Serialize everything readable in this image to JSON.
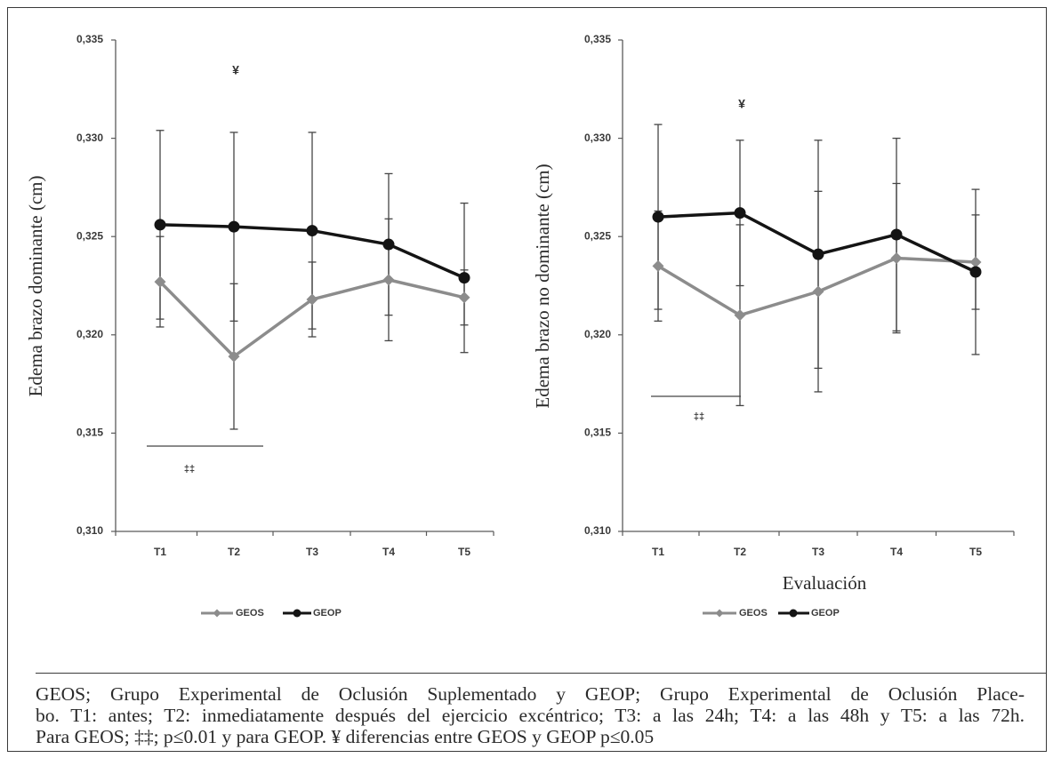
{
  "caption": {
    "lines": [
      "GEOS; Grupo Experimental de Oclusión Suplementado y GEOP; Grupo Experimental de Oclusión Place-",
      "bo. T1: antes; T2: inmediatamente después del ejercicio excéntrico; T3: a las 24h; T4: a las 48h y T5: a las 72h.",
      "Para GEOS; ‡‡; p≤0.01 y para GEOP. ¥ diferencias entre GEOS y GEOP p≤0.05"
    ]
  },
  "colors": {
    "GEOS": "#8c8c8c",
    "GEOP": "#141414",
    "error_bar": "#454545",
    "axis": "#5a5a5a"
  },
  "chart_data": [
    {
      "type": "line",
      "categories": [
        "T1",
        "T2",
        "T3",
        "T4",
        "T5"
      ],
      "series": [
        {
          "name": "GEOS",
          "marker": "diamond",
          "values": [
            0.3227,
            0.3189,
            0.3218,
            0.3228,
            0.3219
          ],
          "error": [
            0.0023,
            0.0037,
            0.0019,
            0.0031,
            0.0014
          ]
        },
        {
          "name": "GEOP",
          "marker": "circle",
          "values": [
            0.3256,
            0.3255,
            0.3253,
            0.3246,
            0.3229
          ],
          "error": [
            0.0048,
            0.0048,
            0.005,
            0.0036,
            0.0038
          ]
        }
      ],
      "ylabel": "Edema brazo dominante (cm)",
      "ylim": [
        0.31,
        0.335
      ],
      "yticks": [
        0.31,
        0.315,
        0.32,
        0.325,
        0.33,
        0.335
      ],
      "ytick_labels": [
        "0,310",
        "0,315",
        "0,320",
        "0,325",
        "0,330",
        "0,335"
      ],
      "grid": false,
      "legend": "bottom",
      "annotations": [
        {
          "text": "¥",
          "category": "T2"
        },
        {
          "text": "‡‡",
          "from": "T1",
          "to": "T2"
        }
      ]
    },
    {
      "type": "line",
      "categories": [
        "T1",
        "T2",
        "T3",
        "T4",
        "T5"
      ],
      "series": [
        {
          "name": "GEOS",
          "marker": "diamond",
          "values": [
            0.3235,
            0.321,
            0.3222,
            0.3239,
            0.3237
          ],
          "error": [
            0.0028,
            0.0046,
            0.0051,
            0.0038,
            0.0024
          ]
        },
        {
          "name": "GEOP",
          "marker": "circle",
          "values": [
            0.326,
            0.3262,
            0.3241,
            0.3251,
            0.3232
          ],
          "error": [
            0.0047,
            0.0037,
            0.0058,
            0.0049,
            0.0042
          ]
        }
      ],
      "xlabel": "Evaluación",
      "ylabel": "Edema brazo no dominante (cm)",
      "ylim": [
        0.31,
        0.335
      ],
      "yticks": [
        0.31,
        0.315,
        0.32,
        0.325,
        0.33,
        0.335
      ],
      "ytick_labels": [
        "0,310",
        "0,315",
        "0,320",
        "0,325",
        "0,330",
        "0,335"
      ],
      "grid": false,
      "legend": "bottom",
      "annotations": [
        {
          "text": "¥",
          "category": "T2"
        },
        {
          "text": "‡‡",
          "from": "T1",
          "to": "T2"
        }
      ]
    }
  ]
}
